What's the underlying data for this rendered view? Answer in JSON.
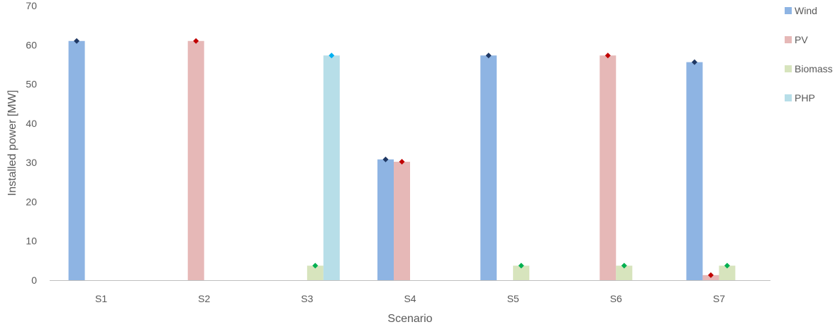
{
  "chart_data": {
    "type": "bar",
    "title": "",
    "xlabel": "Scenario",
    "ylabel": "Installed power [MW]",
    "ylim": [
      0,
      70
    ],
    "yticks": [
      0,
      10,
      20,
      30,
      40,
      50,
      60,
      70
    ],
    "grid": false,
    "legend_position": "right",
    "categories": [
      "S1",
      "S2",
      "S3",
      "S4",
      "S5",
      "S6",
      "S7"
    ],
    "series": [
      {
        "name": "Wind",
        "color": "#8eb4e3",
        "marker_color": "#1f3864",
        "values": [
          61,
          0,
          0,
          30.8,
          57.3,
          0,
          55.6
        ]
      },
      {
        "name": "PV",
        "color": "#e6b8b7",
        "marker_color": "#c00000",
        "values": [
          0,
          61,
          0,
          30.2,
          0,
          57.3,
          1.3
        ]
      },
      {
        "name": "Biomass",
        "color": "#d7e4bd",
        "marker_color": "#00b050",
        "values": [
          0,
          0,
          3.7,
          0,
          3.7,
          3.7,
          3.7
        ]
      },
      {
        "name": "PHP",
        "color": "#b7dee8",
        "marker_color": "#00b0f0",
        "values": [
          0,
          0,
          57.3,
          0,
          0,
          0,
          0
        ]
      }
    ]
  }
}
